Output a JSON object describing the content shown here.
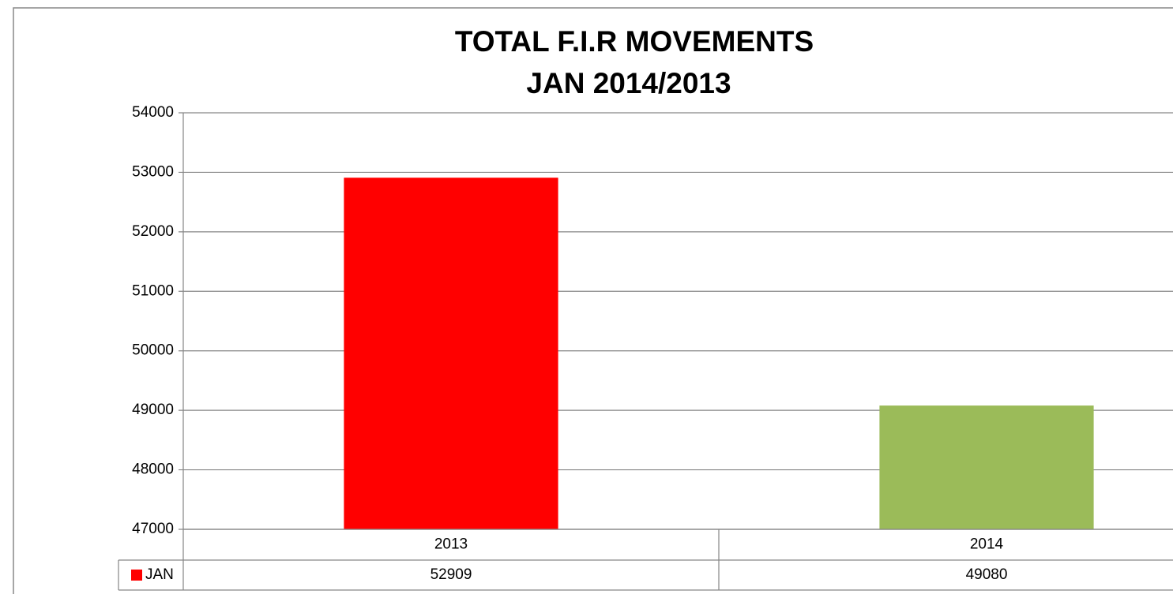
{
  "chart_data": {
    "type": "bar",
    "title": "TOTAL F.I.R  MOVEMENTS",
    "subtitle": "JAN 2014/2013",
    "categories": [
      "2013",
      "2014"
    ],
    "series": [
      {
        "name": "JAN",
        "color": "#ff0000",
        "colors": [
          "#ff0000",
          "#9bbb59"
        ],
        "values": [
          52909,
          49080
        ]
      }
    ],
    "ylim": [
      47000,
      54000
    ],
    "yticks": [
      47000,
      48000,
      49000,
      50000,
      51000,
      52000,
      53000,
      54000
    ],
    "grid": true,
    "data_table": true
  }
}
